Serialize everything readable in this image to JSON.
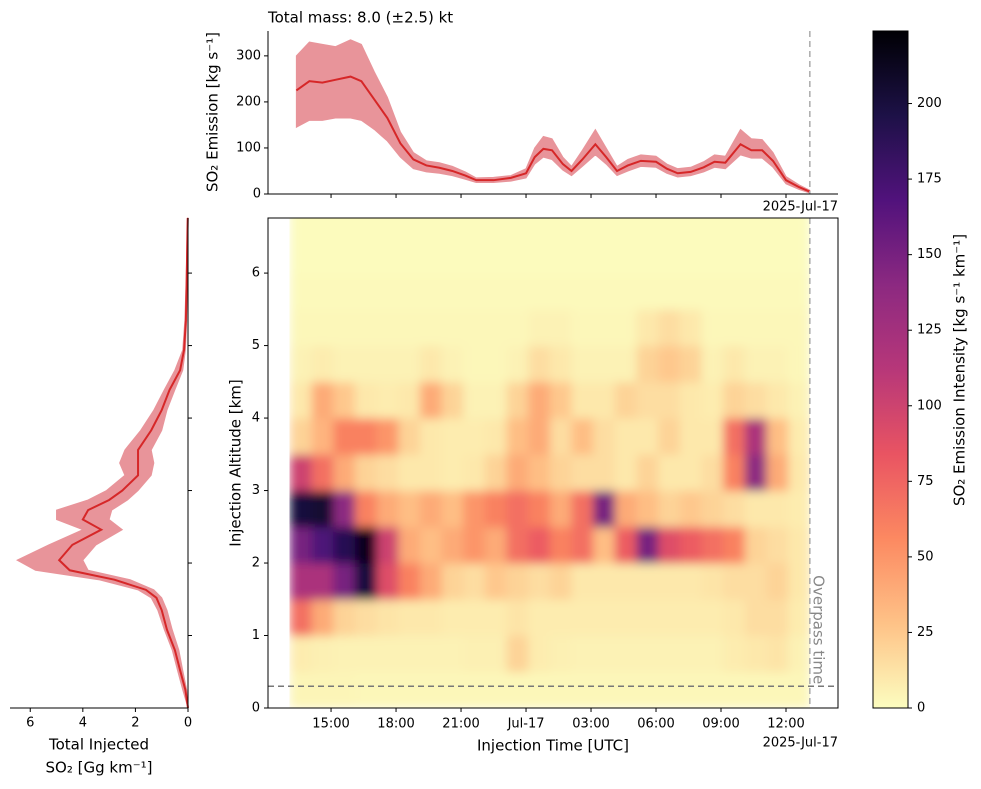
{
  "chart_data": [
    {
      "type": "line",
      "title": "Total mass: 8.0 (±2.5) kt",
      "ylabel": "SO₂ Emission [kg s⁻¹]",
      "x_offset_label": "2025-Jul-17",
      "x": [
        13.4,
        14.0,
        14.6,
        15.2,
        15.9,
        16.4,
        17.0,
        17.6,
        18.2,
        18.8,
        19.4,
        20.0,
        20.6,
        21.2,
        21.7,
        22.5,
        23.3,
        24.0,
        24.4,
        24.8,
        25.2,
        25.7,
        26.1,
        26.6,
        27.2,
        27.7,
        28.2,
        28.7,
        29.3,
        30.0,
        30.5,
        31.0,
        31.6,
        32.2,
        32.7,
        33.2,
        33.9,
        34.4,
        34.9,
        35.4,
        36.0,
        36.6,
        37.1
      ],
      "values": [
        225,
        245,
        242,
        248,
        255,
        245,
        205,
        165,
        110,
        75,
        62,
        57,
        50,
        40,
        30,
        30,
        35,
        45,
        80,
        98,
        95,
        65,
        50,
        75,
        108,
        80,
        50,
        62,
        72,
        70,
        55,
        45,
        48,
        58,
        70,
        68,
        108,
        95,
        95,
        72,
        30,
        15,
        5
      ],
      "lower": [
        145,
        160,
        160,
        165,
        165,
        160,
        140,
        115,
        80,
        55,
        48,
        45,
        40,
        32,
        25,
        25,
        28,
        35,
        65,
        80,
        75,
        52,
        40,
        60,
        85,
        65,
        40,
        50,
        60,
        58,
        45,
        37,
        40,
        48,
        58,
        55,
        85,
        78,
        78,
        58,
        22,
        10,
        2
      ],
      "upper": [
        300,
        330,
        325,
        320,
        335,
        325,
        265,
        210,
        135,
        90,
        72,
        68,
        60,
        48,
        35,
        36,
        40,
        55,
        100,
        125,
        120,
        80,
        60,
        95,
        140,
        100,
        60,
        75,
        85,
        82,
        65,
        55,
        58,
        70,
        85,
        82,
        140,
        120,
        118,
        90,
        38,
        20,
        8
      ],
      "color": "#d62728",
      "band_color": "#e8949a",
      "xlim": [
        12.09,
        38.4
      ],
      "ylim": [
        0,
        354
      ],
      "xticks": [
        15,
        18,
        21,
        24,
        27,
        30,
        33,
        36
      ],
      "yticks": [
        0,
        100,
        200,
        300
      ],
      "vline": 37.1,
      "vline_color": "#aaaaaa"
    },
    {
      "type": "profile",
      "xlabel": [
        "Total Injected",
        "SO₂ [Gg km⁻¹]"
      ],
      "y": [
        0,
        0.25,
        0.52,
        0.8,
        1.08,
        1.35,
        1.52,
        1.63,
        1.77,
        1.9,
        2.04,
        2.25,
        2.46,
        2.6,
        2.73,
        2.87,
        3.0,
        3.21,
        3.38,
        3.56,
        3.83,
        4.11,
        4.39,
        4.66,
        4.94,
        5.35,
        5.9,
        6.59,
        6.76
      ],
      "values": [
        0,
        0.1,
        0.3,
        0.5,
        0.8,
        1.0,
        1.2,
        1.6,
        2.8,
        4.5,
        4.9,
        4.4,
        3.3,
        4.0,
        3.8,
        3.0,
        2.5,
        1.9,
        1.9,
        1.9,
        1.4,
        1.0,
        0.7,
        0.3,
        0.15,
        0.08,
        0.05,
        0.02,
        0.01
      ],
      "lower": [
        0,
        0.05,
        0.2,
        0.35,
        0.6,
        0.8,
        1.0,
        1.3,
        2.2,
        3.8,
        4.0,
        3.5,
        2.5,
        3.0,
        2.9,
        2.3,
        1.9,
        1.4,
        1.3,
        1.4,
        1.0,
        0.8,
        0.5,
        0.2,
        0.1,
        0.05,
        0.03,
        0.01,
        0
      ],
      "upper": [
        0,
        0.2,
        0.4,
        0.6,
        0.9,
        1.15,
        1.4,
        1.9,
        3.4,
        5.8,
        6.5,
        5.3,
        4.0,
        5.0,
        5.0,
        3.8,
        3.1,
        2.4,
        2.6,
        2.4,
        1.8,
        1.3,
        0.9,
        0.5,
        0.2,
        0.12,
        0.07,
        0.03,
        0.02
      ],
      "color": "#d62728",
      "band_color": "#e8949a",
      "xlim": [
        6.77,
        0
      ],
      "ylim": [
        0,
        6.76
      ],
      "xticks": [
        6,
        4,
        2,
        0
      ],
      "yticks": [
        1,
        2,
        3,
        4,
        5,
        6
      ]
    },
    {
      "type": "heatmap",
      "xlabel": "Injection Time [UTC]",
      "ylabel": "Injection Altitude [km]",
      "x_offset_label": "2025-Jul-17",
      "x_bins": [
        13.1,
        14.1,
        15.1,
        16.1,
        17.1,
        18.1,
        19.1,
        20.1,
        21.1,
        22.1,
        23.1,
        24.1,
        25.1,
        26.1,
        27.1,
        28.1,
        29.1,
        30.1,
        31.1,
        32.1,
        33.1,
        34.1,
        35.1,
        36.1,
        37.1
      ],
      "y_bins": [
        0,
        0.5,
        1,
        1.5,
        2,
        2.5,
        3,
        3.5,
        4,
        4.5,
        5,
        5.5,
        6,
        6.5,
        7
      ],
      "z": [
        [
          4,
          4,
          4,
          3,
          3,
          3,
          3,
          3,
          3,
          3,
          3,
          3,
          3,
          3,
          3,
          3,
          3,
          3,
          3,
          3,
          3,
          3,
          3,
          3
        ],
        [
          8,
          6,
          5,
          5,
          5,
          5,
          5,
          5,
          6,
          6,
          20,
          8,
          6,
          5,
          5,
          5,
          5,
          5,
          5,
          5,
          8,
          10,
          12,
          5
        ],
        [
          70,
          40,
          20,
          15,
          12,
          10,
          10,
          8,
          8,
          8,
          12,
          8,
          8,
          8,
          8,
          8,
          8,
          8,
          8,
          8,
          10,
          15,
          15,
          8
        ],
        [
          120,
          120,
          150,
          200,
          90,
          60,
          40,
          20,
          15,
          25,
          20,
          15,
          20,
          10,
          10,
          10,
          10,
          10,
          10,
          12,
          15,
          15,
          20,
          10
        ],
        [
          150,
          170,
          190,
          215,
          100,
          40,
          30,
          40,
          50,
          40,
          70,
          80,
          60,
          70,
          30,
          80,
          150,
          90,
          80,
          70,
          60,
          20,
          15,
          10
        ],
        [
          200,
          205,
          140,
          60,
          40,
          30,
          40,
          30,
          50,
          60,
          70,
          60,
          40,
          70,
          150,
          40,
          30,
          20,
          25,
          20,
          15,
          10,
          10,
          8
        ],
        [
          100,
          70,
          40,
          20,
          15,
          10,
          10,
          8,
          10,
          20,
          40,
          30,
          20,
          15,
          15,
          10,
          20,
          10,
          10,
          15,
          60,
          140,
          40,
          10
        ],
        [
          20,
          35,
          60,
          60,
          50,
          20,
          10,
          8,
          8,
          10,
          30,
          40,
          15,
          30,
          15,
          10,
          10,
          20,
          10,
          10,
          70,
          120,
          30,
          8
        ],
        [
          10,
          40,
          25,
          10,
          8,
          10,
          40,
          20,
          5,
          5,
          20,
          40,
          25,
          10,
          10,
          20,
          15,
          15,
          10,
          8,
          20,
          15,
          10,
          5
        ],
        [
          5,
          8,
          5,
          5,
          5,
          5,
          10,
          5,
          3,
          3,
          5,
          15,
          10,
          5,
          5,
          5,
          20,
          25,
          20,
          5,
          10,
          5,
          5,
          3
        ],
        [
          3,
          3,
          3,
          3,
          3,
          3,
          3,
          3,
          3,
          3,
          3,
          5,
          5,
          3,
          3,
          3,
          10,
          15,
          10,
          3,
          3,
          3,
          3,
          3
        ],
        [
          2,
          2,
          2,
          2,
          2,
          2,
          2,
          2,
          2,
          2,
          2,
          2,
          2,
          2,
          2,
          2,
          2,
          2,
          2,
          2,
          2,
          2,
          2,
          2
        ],
        [
          1,
          1,
          1,
          1,
          1,
          1,
          1,
          1,
          1,
          1,
          1,
          1,
          1,
          1,
          1,
          1,
          1,
          1,
          1,
          1,
          1,
          1,
          1,
          1
        ],
        [
          1,
          1,
          1,
          1,
          1,
          1,
          1,
          1,
          1,
          1,
          1,
          1,
          1,
          1,
          1,
          1,
          1,
          1,
          1,
          1,
          1,
          1,
          1,
          1
        ]
      ],
      "xlim": [
        12.09,
        38.4
      ],
      "ylim": [
        0,
        6.76
      ],
      "xticks": [
        {
          "value": 15,
          "label": "15:00"
        },
        {
          "value": 18,
          "label": "18:00"
        },
        {
          "value": 21,
          "label": "21:00"
        },
        {
          "value": 24,
          "label": "Jul-17"
        },
        {
          "value": 27,
          "label": "03:00"
        },
        {
          "value": 30,
          "label": "06:00"
        },
        {
          "value": 33,
          "label": "09:00"
        },
        {
          "value": 36,
          "label": "12:00"
        }
      ],
      "yticks": [
        0,
        1,
        2,
        3,
        4,
        5,
        6
      ],
      "vline": 37.1,
      "vline_label": "Overpass time",
      "vline_color": "#aaaaaa",
      "hline": 0.3,
      "hline_color": "#777777",
      "colorbar": {
        "label": "SO₂ Emission Intensity [kg s⁻¹ km⁻¹]",
        "clim": [
          0,
          224
        ],
        "ticks": [
          0,
          25,
          50,
          75,
          100,
          125,
          150,
          175,
          200
        ],
        "colors": [
          "#fcfdbf",
          "#fec287",
          "#fc8961",
          "#e95462",
          "#b73779",
          "#8c2981",
          "#51127c",
          "#1d1147",
          "#000004"
        ]
      }
    }
  ]
}
